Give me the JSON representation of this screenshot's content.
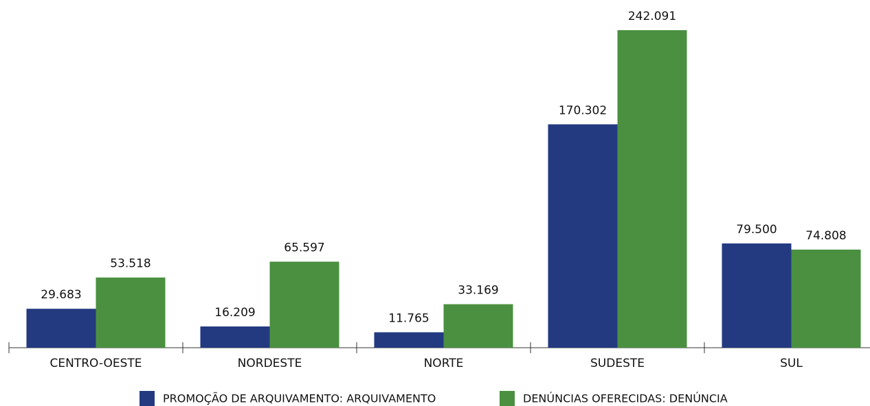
{
  "chart_data": {
    "type": "bar",
    "categories": [
      "CENTRO-OESTE",
      "NORDESTE",
      "NORTE",
      "SUDESTE",
      "SUL"
    ],
    "series": [
      {
        "name": "PROMOÇÃO DE ARQUIVAMENTO: ARQUIVAMENTO",
        "color": "#233a80",
        "values": [
          29683,
          16209,
          11765,
          170302,
          79500
        ],
        "value_labels": [
          "29.683",
          "16.209",
          "11.765",
          "170.302",
          "79.500"
        ]
      },
      {
        "name": "DENÚNCIAS OFERECIDAS: DENÚNCIA",
        "color": "#4a9040",
        "values": [
          53518,
          65597,
          33169,
          242091,
          74808
        ],
        "value_labels": [
          "53.518",
          "65.597",
          "33.169",
          "242.091",
          "74.808"
        ]
      }
    ],
    "legend": "bottom"
  }
}
